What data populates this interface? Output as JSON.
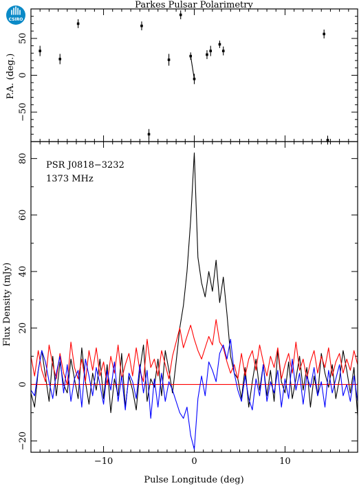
{
  "chart_data": [
    {
      "type": "scatter",
      "title": "Parkes Pulsar Polarimetry",
      "ylabel": "P.A. (deg.)",
      "xlim": [
        -18,
        18
      ],
      "ylim": [
        -90,
        90
      ],
      "yticks": [
        -50,
        0,
        50
      ],
      "points": [
        {
          "x": -17.0,
          "y": 33,
          "err": 7
        },
        {
          "x": -14.8,
          "y": 22,
          "err": 7
        },
        {
          "x": -12.8,
          "y": 70,
          "err": 6
        },
        {
          "x": -5.8,
          "y": 67,
          "err": 6
        },
        {
          "x": -5.0,
          "y": -80,
          "err": 7
        },
        {
          "x": -2.8,
          "y": 21,
          "err": 8
        },
        {
          "x": -1.5,
          "y": 82,
          "err": 6
        },
        {
          "x": -0.4,
          "y": 26,
          "err": 5
        },
        {
          "x": 0.0,
          "y": -5,
          "err": 7
        },
        {
          "x": 1.4,
          "y": 28,
          "err": 6
        },
        {
          "x": 1.8,
          "y": 33,
          "err": 7
        },
        {
          "x": 2.8,
          "y": 42,
          "err": 5
        },
        {
          "x": 3.2,
          "y": 33,
          "err": 6
        },
        {
          "x": 14.3,
          "y": 56,
          "err": 6
        },
        {
          "x": 14.7,
          "y": -88,
          "err": 6
        }
      ],
      "segments": [
        [
          -0.4,
          26,
          0.0,
          -5
        ]
      ]
    },
    {
      "type": "line",
      "xlabel": "Pulse Longitude (deg)",
      "ylabel": "Flux Density (mJy)",
      "annotation_lines": [
        "PSR J0818−3232",
        "1373 MHz"
      ],
      "xlim": [
        -18,
        18
      ],
      "ylim": [
        -24,
        86
      ],
      "xticks": [
        -10,
        0,
        10
      ],
      "yticks": [
        -20,
        0,
        20,
        40,
        60,
        80
      ],
      "x": [
        -18.0,
        -17.6,
        -17.2,
        -16.8,
        -16.4,
        -16.0,
        -15.6,
        -15.2,
        -14.8,
        -14.4,
        -14.0,
        -13.6,
        -13.2,
        -12.8,
        -12.4,
        -12.0,
        -11.6,
        -11.2,
        -10.8,
        -10.4,
        -10.0,
        -9.6,
        -9.2,
        -8.8,
        -8.4,
        -8.0,
        -7.6,
        -7.2,
        -6.8,
        -6.4,
        -6.0,
        -5.6,
        -5.2,
        -4.8,
        -4.4,
        -4.0,
        -3.6,
        -3.2,
        -2.8,
        -2.4,
        -2.0,
        -1.6,
        -1.2,
        -0.8,
        -0.4,
        0.0,
        0.4,
        0.8,
        1.2,
        1.6,
        2.0,
        2.4,
        2.8,
        3.2,
        3.6,
        4.0,
        4.4,
        4.8,
        5.2,
        5.6,
        6.0,
        6.4,
        6.8,
        7.2,
        7.6,
        8.0,
        8.4,
        8.8,
        9.2,
        9.6,
        10.0,
        10.4,
        10.8,
        11.2,
        11.6,
        12.0,
        12.4,
        12.8,
        13.2,
        13.6,
        14.0,
        14.4,
        14.8,
        15.2,
        15.6,
        16.0,
        16.4,
        16.8,
        17.2,
        17.6,
        18.0
      ],
      "series": [
        {
          "color": "#000000",
          "values": [
            -3,
            -8,
            5,
            12,
            3,
            -6,
            10,
            -4,
            8,
            0,
            -3,
            9,
            2,
            -5,
            13,
            1,
            -7,
            4,
            -2,
            9,
            -5,
            7,
            -10,
            2,
            -4,
            11,
            -8,
            3,
            -2,
            -9,
            5,
            14,
            -6,
            2,
            -1,
            9,
            -4,
            12,
            5,
            -3,
            8,
            20,
            28,
            40,
            58,
            82,
            45,
            36,
            31,
            40,
            33,
            44,
            29,
            38,
            25,
            10,
            4,
            2,
            -5,
            6,
            -8,
            1,
            9,
            -2,
            7,
            -4,
            5,
            -6,
            12,
            1,
            -3,
            8,
            -5,
            2,
            10,
            -2,
            6,
            -8,
            3,
            -4,
            11,
            4,
            -1,
            7,
            -5,
            2,
            12,
            5,
            -3,
            6,
            -11
          ]
        },
        {
          "color": "#ff0000",
          "values": [
            0,
            0,
            0,
            0,
            0,
            0,
            0,
            0,
            0,
            0,
            0,
            0,
            0,
            0,
            0,
            0,
            0,
            0,
            0,
            0,
            0,
            0,
            0,
            0,
            0,
            0,
            0,
            0,
            0,
            0,
            0,
            0,
            0,
            0,
            0,
            0,
            0,
            0,
            0,
            0,
            0,
            0,
            0,
            0,
            0,
            0,
            0,
            0,
            0,
            0,
            0,
            0,
            0,
            0,
            0,
            0,
            0,
            0,
            0,
            0,
            0,
            0,
            0,
            0,
            0,
            0,
            0,
            0,
            0,
            0,
            0,
            0,
            0,
            0,
            0,
            0,
            0,
            0,
            0,
            0,
            0,
            0,
            0,
            0,
            0,
            0,
            0,
            0,
            0,
            0,
            0
          ]
        },
        {
          "color": "#ff0000",
          "values": [
            10,
            3,
            12,
            5,
            1,
            14,
            7,
            2,
            11,
            4,
            0,
            15,
            6,
            2,
            9,
            1,
            12,
            5,
            13,
            3,
            8,
            0,
            10,
            4,
            14,
            2,
            7,
            11,
            3,
            13,
            5,
            1,
            16,
            6,
            9,
            3,
            12,
            7,
            2,
            10,
            15,
            20,
            13,
            17,
            21,
            16,
            12,
            9,
            13,
            17,
            14,
            23,
            15,
            13,
            8,
            4,
            7,
            2,
            11,
            3,
            9,
            12,
            5,
            14,
            8,
            3,
            10,
            6,
            13,
            2,
            7,
            11,
            4,
            15,
            5,
            9,
            2,
            8,
            12,
            4,
            10,
            6,
            13,
            3,
            8,
            11,
            4,
            9,
            5,
            12,
            7
          ]
        },
        {
          "color": "#0000ff",
          "values": [
            -2,
            -4,
            5,
            12,
            8,
            1,
            -5,
            4,
            10,
            -3,
            7,
            -6,
            2,
            5,
            -8,
            9,
            3,
            -4,
            6,
            0,
            -7,
            5,
            -2,
            8,
            -6,
            3,
            -9,
            4,
            1,
            -5,
            7,
            -3,
            5,
            -12,
            2,
            -8,
            4,
            -6,
            1,
            -2,
            -6,
            -10,
            -12,
            -8,
            -18,
            -23,
            -5,
            3,
            -4,
            8,
            5,
            1,
            11,
            14,
            9,
            16,
            4,
            -2,
            -6,
            3,
            -5,
            -9,
            2,
            -4,
            7,
            -6,
            1,
            -3,
            5,
            -8,
            2,
            -5,
            9,
            -2,
            4,
            -7,
            3,
            -1,
            6,
            -4,
            1,
            -8,
            5,
            -3,
            2,
            7,
            -4,
            0,
            -6,
            3,
            -6
          ]
        }
      ]
    }
  ]
}
